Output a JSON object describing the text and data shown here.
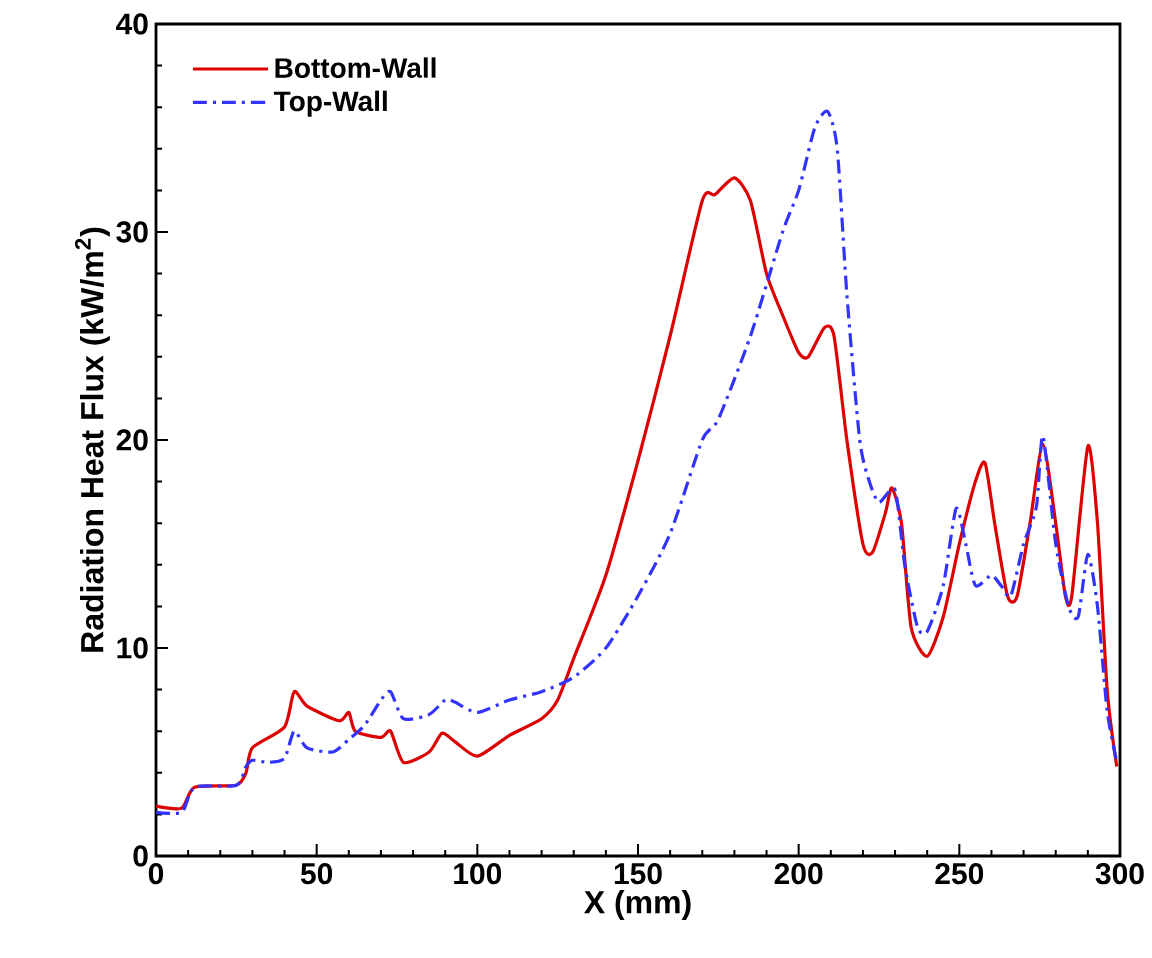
{
  "chart_data": {
    "type": "line",
    "xlabel": "X (mm)",
    "ylabel": "Radiation Heat Flux (kW/m$^{2}$)",
    "xlim": [
      0,
      300
    ],
    "ylim": [
      0,
      40
    ],
    "xticks": [
      0,
      50,
      100,
      150,
      200,
      250,
      300
    ],
    "yticks": [
      0,
      10,
      20,
      30,
      40
    ],
    "grid": false,
    "legend": "top left",
    "marker": "none",
    "series": [
      {
        "name": "Bottom-Wall",
        "color": "#dd0000",
        "line_style": "solid",
        "x": [
          0,
          8,
          12,
          25,
          28,
          30,
          40,
          43,
          47,
          57,
          60,
          62,
          70,
          73,
          77,
          85,
          89,
          93,
          100,
          110,
          120,
          125,
          130,
          140,
          150,
          160,
          170,
          174,
          180,
          185,
          190,
          195,
          200,
          203,
          208,
          211,
          215,
          220,
          223,
          227,
          229,
          232,
          235,
          240,
          245,
          250,
          255,
          258,
          261,
          265,
          268,
          272,
          276,
          280,
          283,
          285,
          290,
          293,
          296,
          299
        ],
        "values": [
          2.4,
          2.3,
          3.3,
          3.4,
          4.0,
          5.2,
          6.2,
          7.9,
          7.2,
          6.5,
          6.9,
          6.0,
          5.7,
          6.0,
          4.5,
          5.0,
          5.9,
          5.5,
          4.8,
          5.8,
          6.6,
          7.5,
          9.5,
          13.5,
          19,
          25,
          31.5,
          31.8,
          32.6,
          31.5,
          28,
          26,
          24.2,
          24,
          25.4,
          25,
          20,
          15,
          14.6,
          16.5,
          17.7,
          16,
          11,
          9.6,
          11.5,
          15,
          18,
          18.9,
          16,
          12.5,
          12.5,
          16,
          19.8,
          16,
          12.5,
          12.5,
          19.7,
          16,
          8,
          4.3
        ]
      },
      {
        "name": "Top-Wall",
        "color": "#3333ff",
        "line_style": "dashdot",
        "x": [
          0,
          8,
          12,
          25,
          28,
          30,
          35,
          40,
          43,
          47,
          55,
          60,
          65,
          70,
          73,
          77,
          85,
          90,
          93,
          100,
          110,
          120,
          130,
          140,
          150,
          160,
          170,
          175,
          185,
          195,
          200,
          205,
          209,
          212,
          215,
          219,
          222,
          225,
          230,
          233,
          237,
          240,
          245,
          249,
          252,
          255,
          260,
          263,
          266,
          270,
          274,
          276,
          280,
          284,
          287,
          290,
          293,
          296,
          299
        ],
        "values": [
          2.1,
          2.1,
          3.3,
          3.4,
          4.3,
          4.6,
          4.5,
          4.7,
          6.0,
          5.2,
          5.0,
          5.6,
          6.3,
          7.5,
          7.9,
          6.6,
          6.8,
          7.5,
          7.4,
          6.9,
          7.5,
          7.9,
          8.6,
          10,
          12.5,
          15.5,
          20,
          21,
          25,
          30,
          32,
          35,
          35.8,
          34,
          27,
          20,
          18,
          17,
          17.6,
          14,
          11,
          10.8,
          13,
          16.7,
          15,
          13,
          13.5,
          13,
          12.5,
          15,
          16.8,
          20.2,
          15,
          12,
          11.5,
          14.5,
          12,
          7,
          4.5
        ]
      }
    ]
  }
}
